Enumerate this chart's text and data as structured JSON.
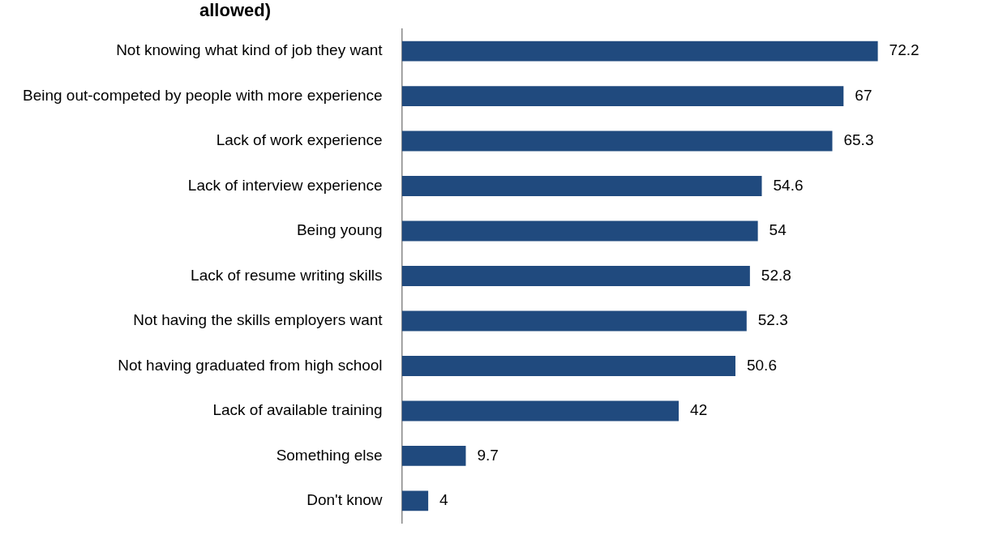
{
  "chart_data": {
    "type": "bar",
    "orientation": "horizontal",
    "title": "allowed)",
    "categories": [
      "Not knowing what kind of job they want",
      "Being out-competed by people with more experience",
      "Lack of work experience",
      "Lack of interview experience",
      "Being young",
      "Lack of resume writing skills",
      "Not having the skills employers want",
      "Not having graduated from high school",
      "Lack of available training",
      "Something else",
      "Don't know"
    ],
    "values": [
      72.2,
      67,
      65.3,
      54.6,
      54,
      52.8,
      52.3,
      50.6,
      42,
      9.7,
      4
    ],
    "color": "#204a7e",
    "data_labels": true,
    "tick_labels": "y",
    "legend": false
  }
}
